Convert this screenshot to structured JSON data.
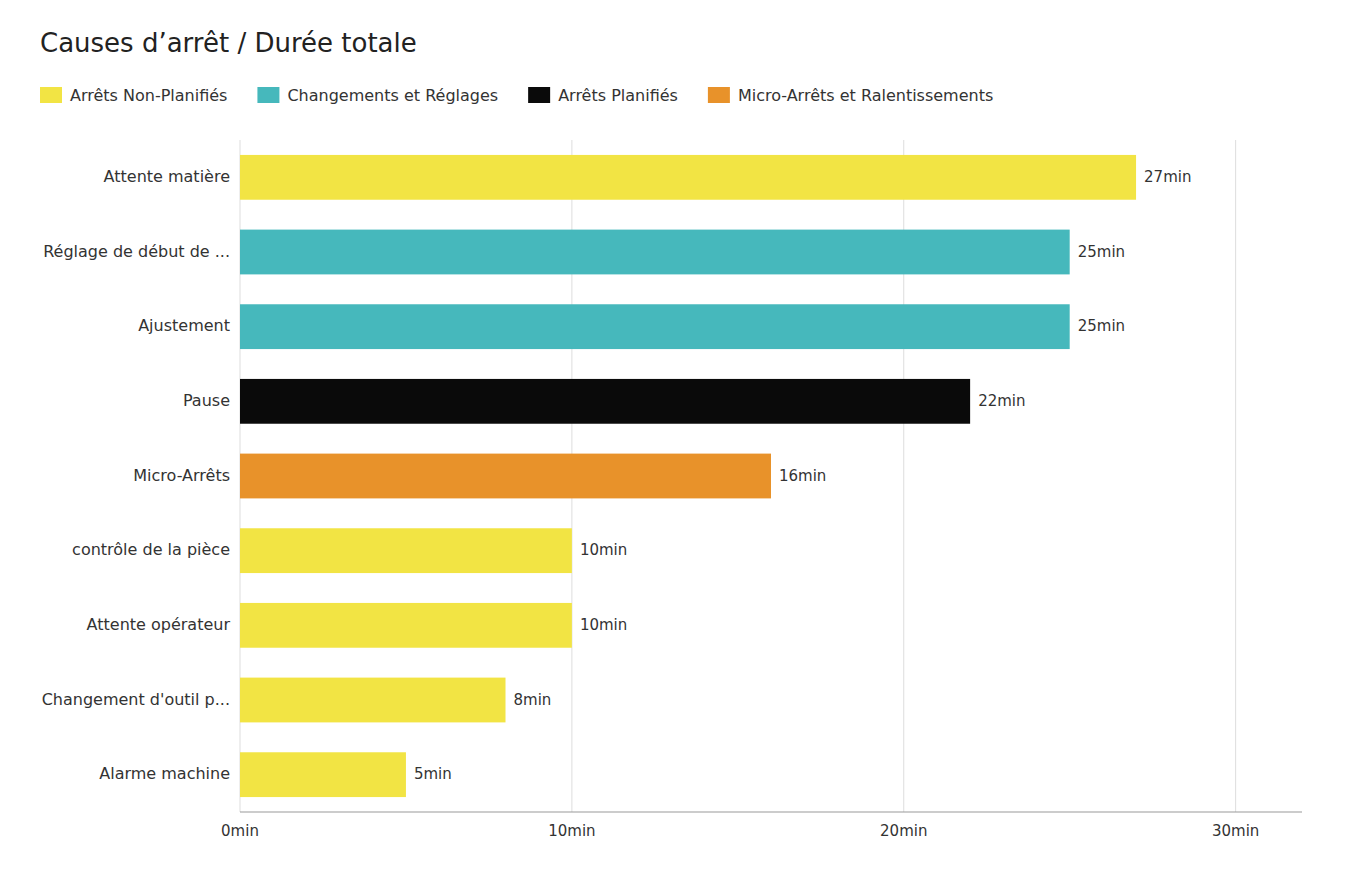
{
  "chart_data": {
    "type": "bar",
    "orientation": "horizontal",
    "title": "Causes d’arrêt / Durée totale",
    "categories": [
      "Attente matière",
      "Réglage de début de ...",
      "Ajustement",
      "Pause",
      "Micro-Arrêts",
      "contrôle de la pièce",
      "Attente opérateur",
      "Changement d'outil p...",
      "Alarme machine"
    ],
    "series": [
      {
        "name": "Arrêts Non-Planifiés",
        "color": "#f2e444",
        "values": [
          27,
          null,
          null,
          null,
          null,
          10,
          10,
          8,
          5
        ],
        "value_labels": [
          "27min",
          null,
          null,
          null,
          null,
          "10min",
          "10min",
          "8min",
          "5min"
        ]
      },
      {
        "name": "Changements et Réglages",
        "color": "#46b8bc",
        "values": [
          null,
          25,
          25,
          null,
          null,
          null,
          null,
          null,
          null
        ],
        "value_labels": [
          null,
          "25min",
          "25min",
          null,
          null,
          null,
          null,
          null,
          null
        ]
      },
      {
        "name": "Arrêts Planifiés",
        "color": "#0a0a0a",
        "values": [
          null,
          null,
          null,
          22,
          null,
          null,
          null,
          null,
          null
        ],
        "value_labels": [
          null,
          null,
          null,
          "22min",
          null,
          null,
          null,
          null,
          null
        ]
      },
      {
        "name": "Micro-Arrêts et Ralentissements",
        "color": "#e8922a",
        "values": [
          null,
          null,
          null,
          null,
          16,
          null,
          null,
          null,
          null
        ],
        "value_labels": [
          null,
          null,
          null,
          null,
          "16min",
          null,
          null,
          null,
          null
        ]
      }
    ],
    "xlim": [
      0,
      32
    ],
    "xticks": [
      {
        "value": 0,
        "label": "0min"
      },
      {
        "value": 10,
        "label": "10min"
      },
      {
        "value": 20,
        "label": "20min"
      },
      {
        "value": 30,
        "label": "30min"
      }
    ],
    "grid": true,
    "legend": "top",
    "data_labels": true
  }
}
